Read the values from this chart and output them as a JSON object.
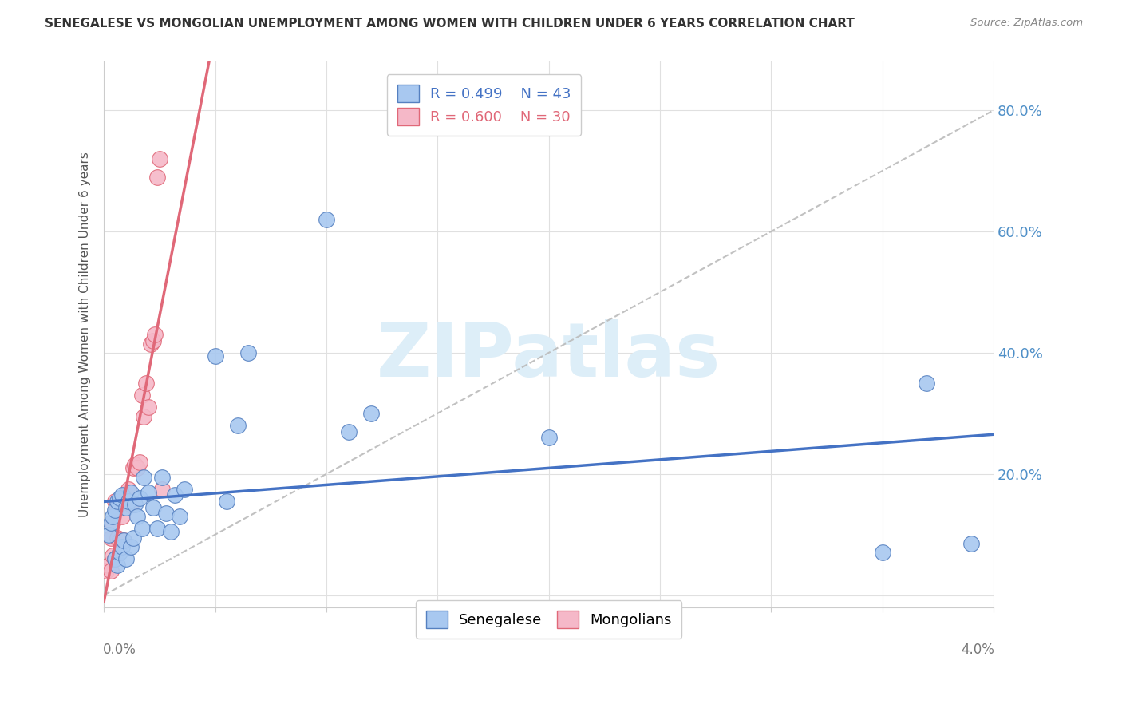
{
  "title": "SENEGALESE VS MONGOLIAN UNEMPLOYMENT AMONG WOMEN WITH CHILDREN UNDER 6 YEARS CORRELATION CHART",
  "source": "Source: ZipAtlas.com",
  "ylabel": "Unemployment Among Women with Children Under 6 years",
  "xlim": [
    0.0,
    0.04
  ],
  "ylim": [
    -0.02,
    0.88
  ],
  "ytick_values": [
    0.0,
    0.2,
    0.4,
    0.6,
    0.8
  ],
  "ytick_labels": [
    "",
    "20.0%",
    "40.0%",
    "60.0%",
    "80.0%"
  ],
  "senegalese_color": "#a8c8f0",
  "mongolian_color": "#f5b8c8",
  "senegalese_edge": "#5580c0",
  "mongolian_edge": "#e06878",
  "R_senegalese": 0.499,
  "N_senegalese": 43,
  "R_mongolian": 0.6,
  "N_mongolian": 30,
  "watermark": "ZIPatlas",
  "watermark_color": "#ddeef8",
  "diag_line_color": "#bbbbbb",
  "senegalese_line_color": "#4472c4",
  "mongolian_line_color": "#e06878",
  "senegalese_x": [
    0.0002,
    0.0003,
    0.0004,
    0.0005,
    0.0005,
    0.0006,
    0.0006,
    0.0007,
    0.0007,
    0.0008,
    0.0008,
    0.0009,
    0.001,
    0.001,
    0.0011,
    0.0012,
    0.0012,
    0.0013,
    0.0014,
    0.0015,
    0.0016,
    0.0017,
    0.0018,
    0.002,
    0.0022,
    0.0024,
    0.0026,
    0.0028,
    0.003,
    0.0032,
    0.0034,
    0.0036,
    0.005,
    0.0055,
    0.006,
    0.0065,
    0.01,
    0.011,
    0.012,
    0.02,
    0.035,
    0.037,
    0.039
  ],
  "senegalese_y": [
    0.1,
    0.12,
    0.13,
    0.06,
    0.14,
    0.05,
    0.155,
    0.07,
    0.16,
    0.08,
    0.165,
    0.09,
    0.06,
    0.145,
    0.155,
    0.08,
    0.17,
    0.095,
    0.15,
    0.13,
    0.16,
    0.11,
    0.195,
    0.17,
    0.145,
    0.11,
    0.195,
    0.135,
    0.105,
    0.165,
    0.13,
    0.175,
    0.395,
    0.155,
    0.28,
    0.4,
    0.62,
    0.27,
    0.3,
    0.26,
    0.07,
    0.35,
    0.085
  ],
  "mongolian_x": [
    0.0001,
    0.0002,
    0.0003,
    0.0003,
    0.0004,
    0.0004,
    0.0005,
    0.0005,
    0.0006,
    0.0006,
    0.0007,
    0.0008,
    0.0009,
    0.001,
    0.0011,
    0.0012,
    0.0013,
    0.0014,
    0.0015,
    0.0016,
    0.0017,
    0.0018,
    0.0019,
    0.002,
    0.0021,
    0.0022,
    0.0023,
    0.0024,
    0.0025,
    0.0026
  ],
  "mongolian_y": [
    0.04,
    0.05,
    0.04,
    0.095,
    0.065,
    0.12,
    0.06,
    0.155,
    0.095,
    0.145,
    0.09,
    0.13,
    0.09,
    0.16,
    0.175,
    0.15,
    0.21,
    0.215,
    0.21,
    0.22,
    0.33,
    0.295,
    0.35,
    0.31,
    0.415,
    0.42,
    0.43,
    0.69,
    0.72,
    0.175
  ]
}
